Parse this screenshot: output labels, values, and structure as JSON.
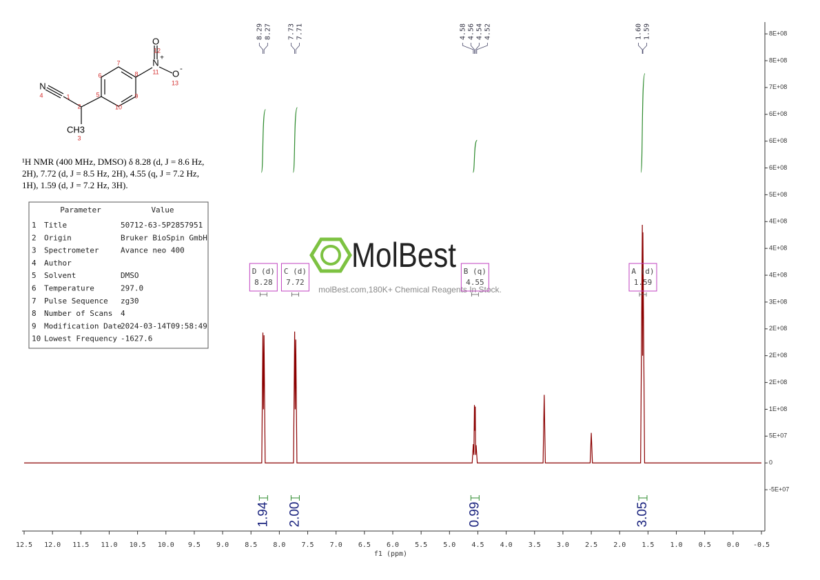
{
  "chart_data": {
    "type": "line",
    "color": "#8b0000",
    "xlabel": "f1 (ppm)",
    "xlim": [
      12.5,
      -0.5
    ],
    "xticks": [
      {
        "value": 12.5,
        "label": "12.5"
      },
      {
        "value": 12,
        "label": "12.0"
      },
      11.5,
      {
        "value": 11,
        "label": "11.0"
      },
      10.5,
      {
        "value": 10,
        "label": "10.0"
      },
      9.5,
      {
        "value": 9,
        "label": "9.0"
      },
      8.5,
      {
        "value": 8,
        "label": "8.0"
      },
      7.5,
      {
        "value": 7,
        "label": "7.0"
      },
      6.5,
      {
        "value": 6,
        "label": "6.0"
      },
      5.5,
      {
        "value": 5,
        "label": "5.0"
      },
      4.5,
      {
        "value": 4,
        "label": "4.0"
      },
      3.5,
      {
        "value": 3,
        "label": "3.0"
      },
      2.5,
      {
        "value": 2,
        "label": "2.0"
      },
      1.5,
      {
        "value": 1,
        "label": "1.0"
      },
      0.5,
      {
        "value": 0,
        "label": "0.0"
      },
      -0.5
    ],
    "ylim": [
      -127000000,
      822000000
    ],
    "yticks": [
      {
        "value": 800000000,
        "label": "8E+08"
      },
      {
        "value": 750000000,
        "label": "8E+08"
      },
      {
        "value": 700000000,
        "label": "7E+08"
      },
      {
        "value": 650000000,
        "label": "6E+08"
      },
      {
        "value": 600000000,
        "label": "6E+08"
      },
      {
        "value": 550000000,
        "label": "6E+08"
      },
      {
        "value": 500000000,
        "label": "5E+08"
      },
      {
        "value": 450000000,
        "label": "4E+08"
      },
      {
        "value": 400000000,
        "label": "4E+08"
      },
      {
        "value": 350000000,
        "label": "4E+08"
      },
      {
        "value": 300000000,
        "label": "3E+08"
      },
      {
        "value": 250000000,
        "label": "2E+08"
      },
      {
        "value": 200000000,
        "label": "2E+08"
      },
      {
        "value": 150000000,
        "label": "2E+08"
      },
      {
        "value": 100000000,
        "label": "1E+08"
      },
      {
        "value": 50000000,
        "label": "5E+07"
      },
      0,
      {
        "value": -50000000,
        "label": "-5E+07"
      }
    ],
    "x": [
      12.5,
      8.31,
      8.29,
      8.28,
      8.27,
      8.25,
      7.75,
      7.73,
      7.72,
      7.71,
      7.69,
      4.6,
      4.58,
      4.57,
      4.56,
      4.555,
      4.545,
      4.54,
      4.53,
      4.51,
      3.35,
      3.33,
      3.31,
      2.52,
      2.5,
      2.48,
      1.63,
      1.6,
      1.595,
      1.59,
      1.56,
      -0.5
    ],
    "values": [
      0,
      0,
      243000000,
      100000000,
      238000000,
      0,
      0,
      245000000,
      100000000,
      230000000,
      0,
      0,
      35000000,
      15000000,
      108000000,
      60000000,
      105000000,
      15000000,
      33000000,
      0,
      0,
      127000000,
      0,
      0,
      56000000,
      0,
      0,
      444000000,
      200000000,
      430000000,
      0,
      0
    ],
    "peak_labels": [
      8.29,
      8.27,
      7.73,
      7.71,
      4.58,
      4.56,
      4.54,
      4.52,
      1.6,
      1.59
    ],
    "peak_label_text": [
      {
        "value": 1.6,
        "label": "1.60"
      }
    ],
    "multiplets": [
      {
        "label": "D (d)",
        "shift": 8.28,
        "integral": 1.94
      },
      {
        "label": "C (d)",
        "shift": 7.72,
        "integral": {
          "value": 2,
          "label": "2.00"
        }
      },
      {
        "label": "B (q)",
        "shift": 4.55,
        "integral": 0.99
      },
      {
        "label": "A (d)",
        "shift": 1.59,
        "integral": 3.05
      }
    ],
    "description": [
      "¹H NMR (400 MHz, DMSO) δ 8.28 (d, J = 8.6 Hz,",
      "2H), 7.72 (d, J = 8.5 Hz, 2H), 4.55 (q, J = 7.2 Hz,",
      "1H), 1.59 (d, J = 7.2 Hz, 3H)."
    ],
    "parameters": {
      "header": [
        "Parameter",
        "Value"
      ],
      "rows": [
        [
          "1",
          "Title",
          "50712-63-5P2857951"
        ],
        [
          "2",
          "Origin",
          "Bruker BioSpin GmbH"
        ],
        [
          "3",
          "Spectrometer",
          "Avance neo 400"
        ],
        [
          "4",
          "Author"
        ],
        [
          "5",
          "Solvent",
          "DMSO"
        ],
        [
          "6",
          "Temperature",
          "297.0"
        ],
        [
          "7",
          "Pulse Sequence",
          "zg30"
        ],
        [
          "8",
          "Number of Scans",
          "4"
        ],
        [
          "9",
          "Modification Date",
          "2024-03-14T09:58:49"
        ],
        [
          "10",
          "Lowest Frequency",
          "-1627.6"
        ]
      ]
    },
    "structure": {
      "n4": "N",
      "ch3": "CH3",
      "n11": "N",
      "plus": "+",
      "o12": "O",
      "o13": "O",
      "minus": "-",
      "numbers": [
        "1",
        "2",
        "3",
        "4",
        "5",
        "6",
        "7",
        "8",
        "9",
        "10",
        "11",
        "12",
        "13"
      ]
    },
    "watermark": {
      "brand": "MolBest",
      "tagline": "molBest.com,180K+ Chemical Reagents In Stock."
    }
  }
}
